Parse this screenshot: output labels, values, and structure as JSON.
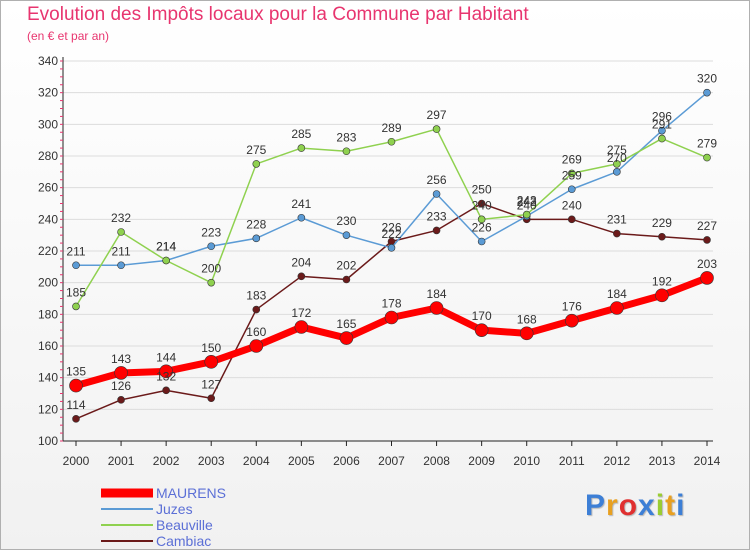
{
  "header": {
    "title": "Evolution des Impôts locaux pour la Commune par Habitant",
    "subtitle": "(en € et par an)"
  },
  "logo": {
    "text": "Proxiti",
    "colors": [
      "#3d7fd6",
      "#e8a020",
      "#e03030",
      "#3d7fd6",
      "#9acd32",
      "#e8a020",
      "#3d7fd6"
    ]
  },
  "chart_data": {
    "type": "line",
    "title": "Evolution des Impôts locaux pour la Commune par Habitant",
    "subtitle": "(en € et par an)",
    "x": [
      "2000",
      "2001",
      "2002",
      "2003",
      "2004",
      "2005",
      "2006",
      "2007",
      "2008",
      "2009",
      "2010",
      "2011",
      "2012",
      "2013",
      "2014"
    ],
    "yticks": [
      "100",
      "120",
      "140",
      "160",
      "180",
      "200",
      "220",
      "240",
      "260",
      "280",
      "300",
      "320",
      "340"
    ],
    "ylim": [
      100,
      340
    ],
    "grid": "horizontal",
    "legend_position": "bottom-left",
    "series": [
      {
        "name": "Cambiac",
        "color": "#6b1a1a",
        "width": 1.5,
        "marker": 3.5,
        "values": [
          114,
          126,
          132,
          127,
          183,
          204,
          202,
          226,
          233,
          250,
          240,
          240,
          231,
          229,
          227
        ]
      },
      {
        "name": "Juzes",
        "color": "#5b9bd5",
        "width": 1.5,
        "marker": 3.5,
        "values": [
          211,
          211,
          214,
          223,
          228,
          241,
          230,
          222,
          256,
          226,
          242,
          259,
          270,
          296,
          320
        ]
      },
      {
        "name": "Beauville",
        "color": "#8fd14f",
        "width": 1.5,
        "marker": 3.5,
        "values": [
          185,
          232,
          214,
          200,
          275,
          285,
          283,
          289,
          297,
          240,
          243,
          269,
          275,
          291,
          279
        ]
      },
      {
        "name": "MAURENS",
        "color": "#ff0000",
        "width": 7,
        "marker": 6.5,
        "values": [
          135,
          143,
          144,
          150,
          160,
          172,
          165,
          178,
          184,
          170,
          168,
          176,
          184,
          192,
          203
        ]
      }
    ],
    "legend_order": [
      "MAURENS",
      "Juzes",
      "Beauville",
      "Cambiac"
    ]
  }
}
